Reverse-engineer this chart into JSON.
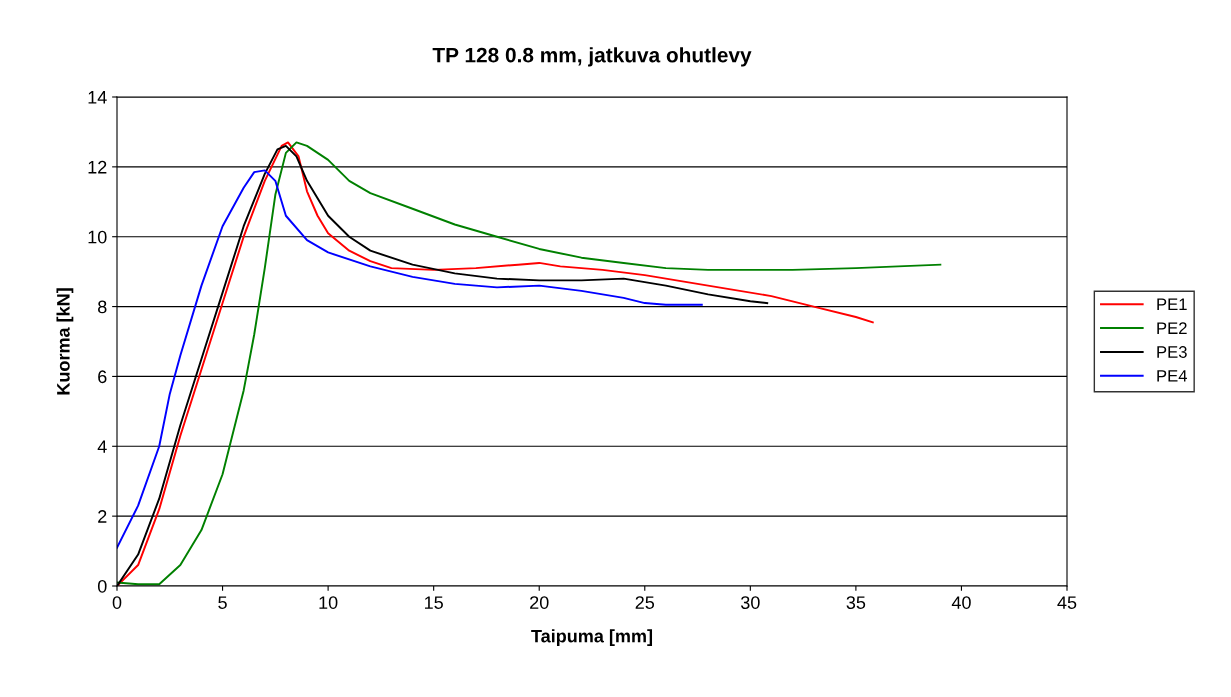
{
  "chart_data": {
    "type": "line",
    "title": "TP 128 0.8 mm, jatkuva ohutlevy",
    "xlabel": "Taipuma [mm]",
    "ylabel": "Kuorma [kN]",
    "xlim": [
      0,
      45
    ],
    "xticks": [
      0,
      5,
      10,
      15,
      20,
      25,
      30,
      35,
      40,
      45
    ],
    "ylim": [
      0,
      14
    ],
    "yticks": [
      0,
      2,
      4,
      6,
      8,
      10,
      12,
      14
    ],
    "grid": "y",
    "legend": "right",
    "marker": "none",
    "line_style": "solid",
    "series": [
      {
        "name": "PE1",
        "color": "#ff0000",
        "x": [
          0,
          1,
          2,
          3,
          4,
          5,
          6,
          7,
          7.8,
          8.1,
          8.6,
          9,
          9.5,
          10,
          11,
          12,
          13,
          15,
          17,
          19,
          20,
          21,
          23,
          25,
          27,
          29,
          31,
          33,
          35,
          35.8
        ],
        "values": [
          0,
          0.6,
          2.2,
          4.3,
          6.2,
          8.1,
          10,
          11.6,
          12.6,
          12.7,
          12.3,
          11.3,
          10.6,
          10.1,
          9.6,
          9.3,
          9.1,
          9.05,
          9.1,
          9.2,
          9.25,
          9.15,
          9.05,
          8.9,
          8.7,
          8.5,
          8.3,
          8.0,
          7.7,
          7.55
        ]
      },
      {
        "name": "PE2",
        "color": "#008000",
        "x": [
          0,
          1,
          2,
          3,
          4,
          5,
          6,
          6.5,
          7,
          7.5,
          8,
          8.5,
          9,
          10,
          11,
          12,
          14,
          16,
          18,
          20,
          22,
          24,
          26,
          28,
          32,
          35,
          37,
          39
        ],
        "values": [
          0.1,
          0.05,
          0.05,
          0.6,
          1.6,
          3.2,
          5.6,
          7.2,
          9.1,
          11.2,
          12.4,
          12.7,
          12.6,
          12.2,
          11.6,
          11.25,
          10.8,
          10.35,
          10.0,
          9.65,
          9.4,
          9.25,
          9.1,
          9.05,
          9.05,
          9.1,
          9.15,
          9.2
        ]
      },
      {
        "name": "PE3",
        "color": "#000000",
        "x": [
          0,
          1,
          2,
          3,
          4,
          5,
          6,
          7,
          7.6,
          8,
          8.5,
          9,
          10,
          11,
          12,
          14,
          16,
          18,
          20,
          22,
          24,
          26,
          28,
          30,
          30.8
        ],
        "values": [
          0,
          0.9,
          2.5,
          4.6,
          6.5,
          8.4,
          10.3,
          11.8,
          12.5,
          12.6,
          12.3,
          11.6,
          10.6,
          10.0,
          9.6,
          9.2,
          8.95,
          8.8,
          8.75,
          8.75,
          8.8,
          8.6,
          8.35,
          8.15,
          8.1
        ]
      },
      {
        "name": "PE4",
        "color": "#0000ff",
        "x": [
          0,
          1,
          2,
          2.5,
          3,
          4,
          5,
          6,
          6.5,
          7,
          7.5,
          8,
          9,
          10,
          12,
          14,
          16,
          18,
          20,
          22,
          24,
          25,
          26,
          27.7
        ],
        "values": [
          1.1,
          2.3,
          4.0,
          5.5,
          6.6,
          8.6,
          10.3,
          11.4,
          11.85,
          11.9,
          11.6,
          10.6,
          9.9,
          9.55,
          9.15,
          8.85,
          8.65,
          8.55,
          8.6,
          8.45,
          8.25,
          8.1,
          8.05,
          8.05
        ]
      }
    ]
  }
}
